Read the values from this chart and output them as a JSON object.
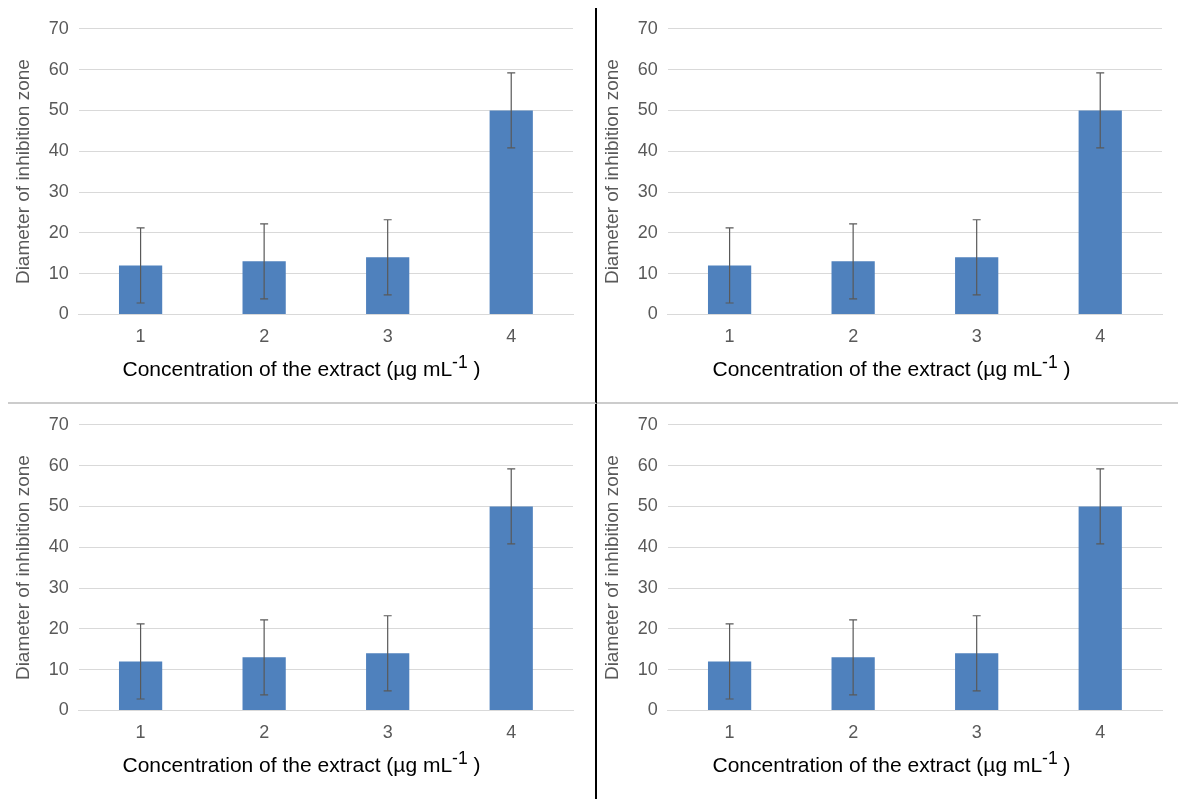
{
  "chart_data": [
    {
      "type": "bar",
      "xlabel": "Concentration of the extract (µg mL$^{-1}$ )",
      "ylabel": "Diameter of inhibition zone",
      "categories": [
        "1",
        "2",
        "3",
        "4"
      ],
      "values": [
        12,
        13,
        14,
        50
      ],
      "errors": [
        9.2,
        9.2,
        9.2,
        9.2
      ],
      "color": "#4f81bd",
      "ylim": [
        0,
        70
      ],
      "yticks": [
        0,
        10,
        20,
        30,
        40,
        50,
        60,
        70
      ],
      "grid": "y"
    },
    {
      "type": "bar",
      "xlabel": "Concentration of the extract (µg mL$^{-1}$ )",
      "ylabel": "Diameter of inhibition zone",
      "categories": [
        "1",
        "2",
        "3",
        "4"
      ],
      "values": [
        12,
        13,
        14,
        50
      ],
      "errors": [
        9.2,
        9.2,
        9.2,
        9.2
      ],
      "color": "#4f81bd",
      "ylim": [
        0,
        70
      ],
      "yticks": [
        0,
        10,
        20,
        30,
        40,
        50,
        60,
        70
      ],
      "grid": "y"
    },
    {
      "type": "bar",
      "xlabel": "Concentration of the extract (µg mL$^{-1}$ )",
      "ylabel": "Diameter of inhibition zone",
      "categories": [
        "1",
        "2",
        "3",
        "4"
      ],
      "values": [
        12,
        13,
        14,
        50
      ],
      "errors": [
        9.2,
        9.2,
        9.2,
        9.2
      ],
      "color": "#4f81bd",
      "ylim": [
        0,
        70
      ],
      "yticks": [
        0,
        10,
        20,
        30,
        40,
        50,
        60,
        70
      ],
      "grid": "y"
    },
    {
      "type": "bar",
      "xlabel": "Concentration of the extract (µg mL$^{-1}$ )",
      "ylabel": "Diameter of inhibition zone",
      "categories": [
        "1",
        "2",
        "3",
        "4"
      ],
      "values": [
        12,
        13,
        14,
        50
      ],
      "errors": [
        9.2,
        9.2,
        9.2,
        9.2
      ],
      "color": "#4f81bd",
      "ylim": [
        0,
        70
      ],
      "yticks": [
        0,
        10,
        20,
        30,
        40,
        50,
        60,
        70
      ],
      "grid": "y"
    }
  ]
}
